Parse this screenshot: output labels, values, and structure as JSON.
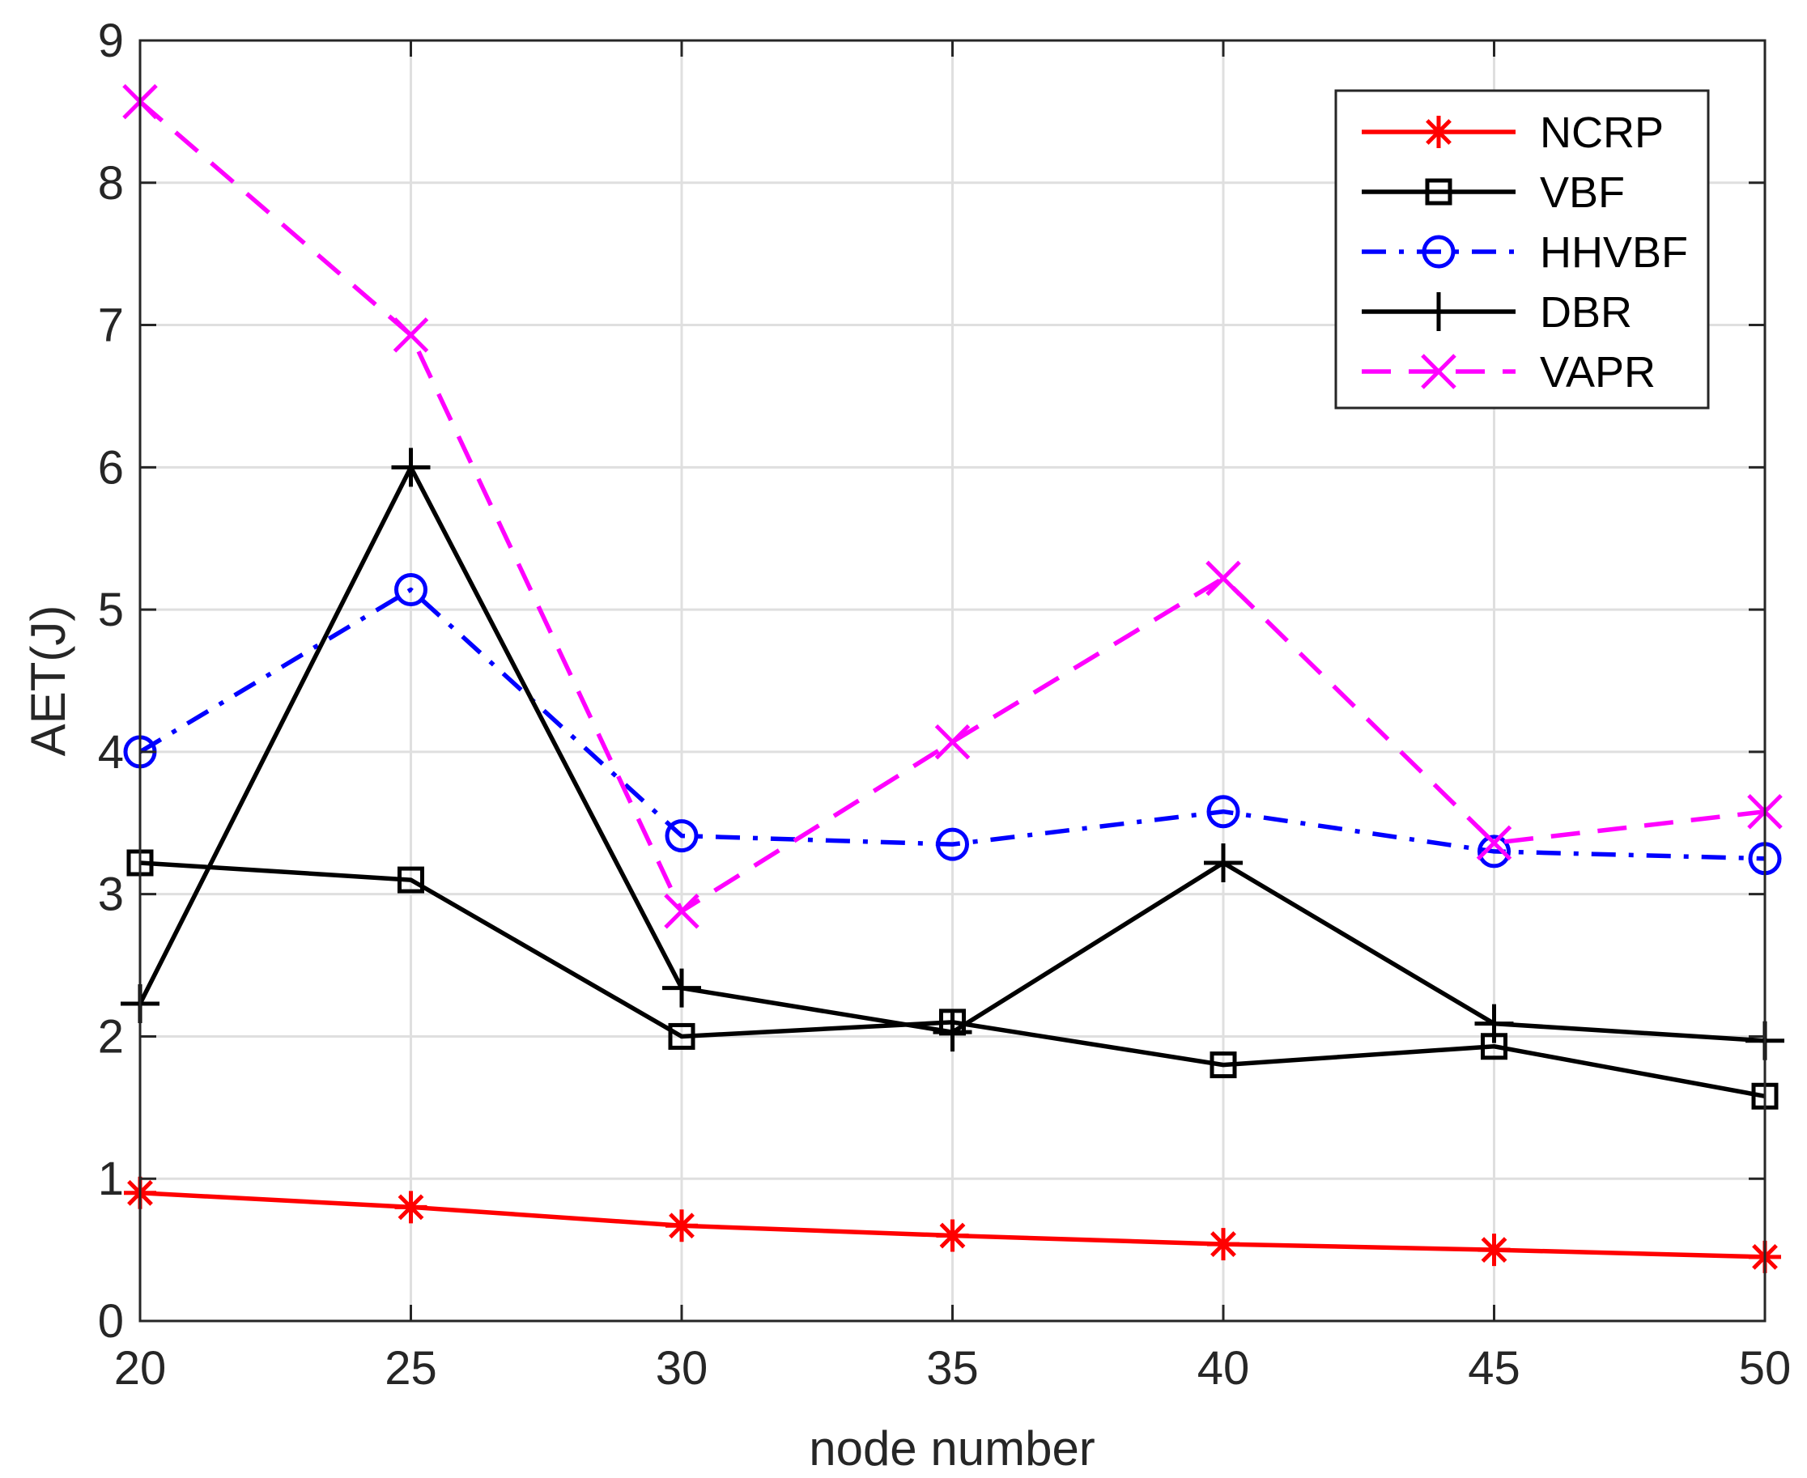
{
  "chart_data": {
    "type": "line",
    "title": "",
    "xlabel": "node number",
    "ylabel": "AET(J)",
    "x": [
      20,
      25,
      30,
      35,
      40,
      45,
      50
    ],
    "xlim": [
      20,
      50
    ],
    "ylim": [
      0,
      9
    ],
    "xticks": [
      "20",
      "25",
      "30",
      "35",
      "40",
      "45",
      "50"
    ],
    "yticks": [
      "0",
      "1",
      "2",
      "3",
      "4",
      "5",
      "6",
      "7",
      "8",
      "9"
    ],
    "grid": true,
    "legend_position": "top-right",
    "series": [
      {
        "name": "NCRP",
        "values": [
          0.9,
          0.8,
          0.67,
          0.6,
          0.54,
          0.5,
          0.45
        ],
        "color": "#ff0000",
        "line_style": "solid",
        "marker": "asterisk"
      },
      {
        "name": "VBF",
        "values": [
          3.22,
          3.1,
          2.0,
          2.1,
          1.8,
          1.93,
          1.58
        ],
        "color": "#000000",
        "line_style": "solid",
        "marker": "square"
      },
      {
        "name": "HHVBF",
        "values": [
          4.0,
          5.14,
          3.41,
          3.35,
          3.58,
          3.3,
          3.25
        ],
        "color": "#0000ff",
        "line_style": "dashdot",
        "marker": "circle"
      },
      {
        "name": "DBR",
        "values": [
          2.23,
          6.0,
          2.34,
          2.03,
          3.22,
          2.09,
          1.97
        ],
        "color": "#000000",
        "line_style": "solid",
        "marker": "plus"
      },
      {
        "name": "VAPR",
        "values": [
          8.57,
          6.93,
          2.88,
          4.07,
          5.22,
          3.36,
          3.58
        ],
        "color": "#ff00ff",
        "line_style": "dashed",
        "marker": "x"
      }
    ]
  }
}
